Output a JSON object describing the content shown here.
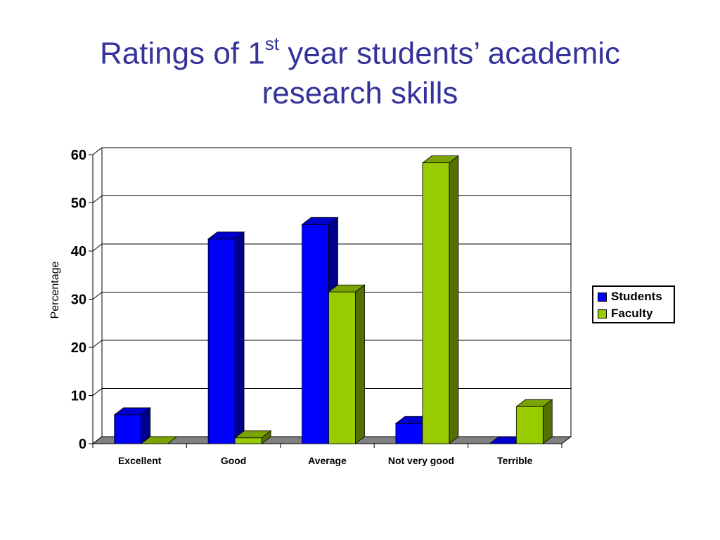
{
  "slide": {
    "title_before": "Ratings of 1",
    "title_sup": "st",
    "title_line1_after": " year students’ academic",
    "title_line2": "research skills"
  },
  "chart_data": {
    "type": "bar",
    "style": "3d-clustered",
    "title": "",
    "xlabel": "",
    "ylabel": "Percentage",
    "ylim": [
      0,
      60
    ],
    "yticks": [
      0,
      10,
      20,
      30,
      40,
      50,
      60
    ],
    "grid": true,
    "legend_position": "right",
    "categories": [
      "Excellent",
      "Good",
      "Average",
      "Not very good",
      "Terrible"
    ],
    "series": [
      {
        "name": "Students",
        "color": "#0000ff",
        "values": [
          6,
          42.5,
          45.5,
          4.2,
          0
        ]
      },
      {
        "name": "Faculty",
        "color": "#99cc00",
        "values": [
          0,
          1.2,
          31.5,
          58.3,
          7.7
        ]
      }
    ]
  }
}
